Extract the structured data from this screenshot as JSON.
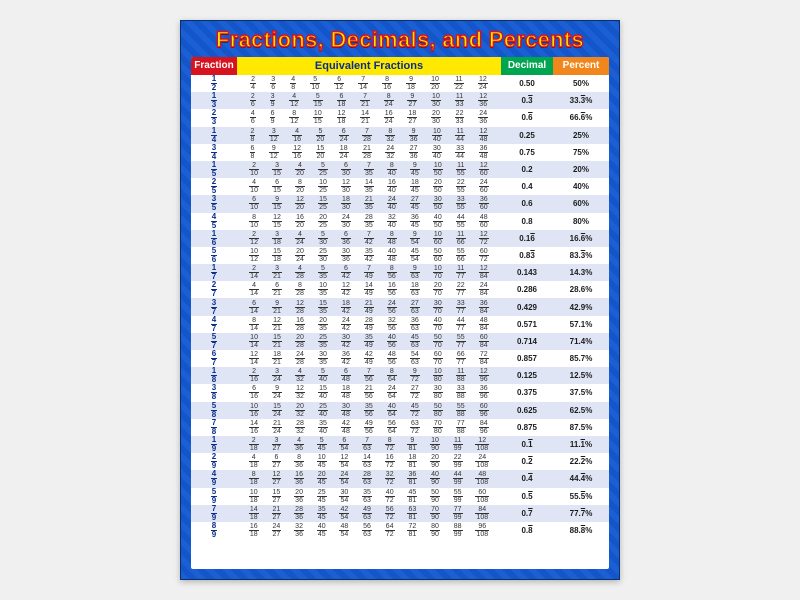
{
  "title": "Fractions, Decimals, and Percents",
  "headers": {
    "fraction": "Fraction",
    "equiv": "Equivalent Fractions",
    "decimal": "Decimal",
    "percent": "Percent"
  },
  "colors": {
    "border": "#1455c9",
    "title_fill": "#ffe900",
    "title_stroke": "#d6131e",
    "h_fraction": "#d6131e",
    "h_equiv": "#ffe900",
    "h_decimal": "#00a54f",
    "h_percent": "#f0861c",
    "row_alt": "#e0e5f5",
    "main_fraction": "#0a2e8a"
  },
  "rows": [
    {
      "n": 1,
      "d": 2,
      "dec": "0.50",
      "pct": "50%",
      "rep": false
    },
    {
      "n": 1,
      "d": 3,
      "dec": "0.3̅",
      "pct": "33.3̅%",
      "rep": true,
      "decPlain": "0.3",
      "pctPlain": "33.3"
    },
    {
      "n": 2,
      "d": 3,
      "dec": "0.6̅",
      "pct": "66.6̅%",
      "rep": true,
      "decPlain": "0.6",
      "pctPlain": "66.6"
    },
    {
      "n": 1,
      "d": 4,
      "dec": "0.25",
      "pct": "25%"
    },
    {
      "n": 3,
      "d": 4,
      "dec": "0.75",
      "pct": "75%"
    },
    {
      "n": 1,
      "d": 5,
      "dec": "0.2",
      "pct": "20%"
    },
    {
      "n": 2,
      "d": 5,
      "dec": "0.4",
      "pct": "40%"
    },
    {
      "n": 3,
      "d": 5,
      "dec": "0.6",
      "pct": "60%"
    },
    {
      "n": 4,
      "d": 5,
      "dec": "0.8",
      "pct": "80%"
    },
    {
      "n": 1,
      "d": 6,
      "dec": "0.16̅",
      "pct": "16.6̅%",
      "rep": true,
      "decPlain": "0.16",
      "pctPlain": "16.6"
    },
    {
      "n": 5,
      "d": 6,
      "dec": "0.83̅",
      "pct": "83.3̅%",
      "rep": true,
      "decPlain": "0.83",
      "pctPlain": "83.3"
    },
    {
      "n": 1,
      "d": 7,
      "dec": "0.143",
      "pct": "14.3%"
    },
    {
      "n": 2,
      "d": 7,
      "dec": "0.286",
      "pct": "28.6%"
    },
    {
      "n": 3,
      "d": 7,
      "dec": "0.429",
      "pct": "42.9%"
    },
    {
      "n": 4,
      "d": 7,
      "dec": "0.571",
      "pct": "57.1%"
    },
    {
      "n": 5,
      "d": 7,
      "dec": "0.714",
      "pct": "71.4%"
    },
    {
      "n": 6,
      "d": 7,
      "dec": "0.857",
      "pct": "85.7%"
    },
    {
      "n": 1,
      "d": 8,
      "dec": "0.125",
      "pct": "12.5%"
    },
    {
      "n": 3,
      "d": 8,
      "dec": "0.375",
      "pct": "37.5%"
    },
    {
      "n": 5,
      "d": 8,
      "dec": "0.625",
      "pct": "62.5%"
    },
    {
      "n": 7,
      "d": 8,
      "dec": "0.875",
      "pct": "87.5%"
    },
    {
      "n": 1,
      "d": 9,
      "dec": "0.1̅",
      "pct": "11.1̅%",
      "rep": true,
      "decPlain": "0.1",
      "pctPlain": "11.1"
    },
    {
      "n": 2,
      "d": 9,
      "dec": "0.2̅",
      "pct": "22.2̅%",
      "rep": true,
      "decPlain": "0.2",
      "pctPlain": "22.2"
    },
    {
      "n": 4,
      "d": 9,
      "dec": "0.4̅",
      "pct": "44.4̅%",
      "rep": true,
      "decPlain": "0.4",
      "pctPlain": "44.4"
    },
    {
      "n": 5,
      "d": 9,
      "dec": "0.5̅",
      "pct": "55.5̅%",
      "rep": true,
      "decPlain": "0.5",
      "pctPlain": "55.5"
    },
    {
      "n": 7,
      "d": 9,
      "dec": "0.7̅",
      "pct": "77.7̅%",
      "rep": true,
      "decPlain": "0.7",
      "pctPlain": "77.7"
    },
    {
      "n": 8,
      "d": 9,
      "dec": "0.8̅",
      "pct": "88.8̅%",
      "rep": true,
      "decPlain": "0.8",
      "pctPlain": "88.8"
    }
  ],
  "equiv_multipliers": [
    2,
    3,
    4,
    5,
    6,
    7,
    8,
    9,
    10,
    11,
    12
  ],
  "layout": {
    "poster_w": 440,
    "poster_h": 560,
    "columns": [
      46,
      "1fr",
      52,
      56
    ],
    "row_height": 17.2
  }
}
